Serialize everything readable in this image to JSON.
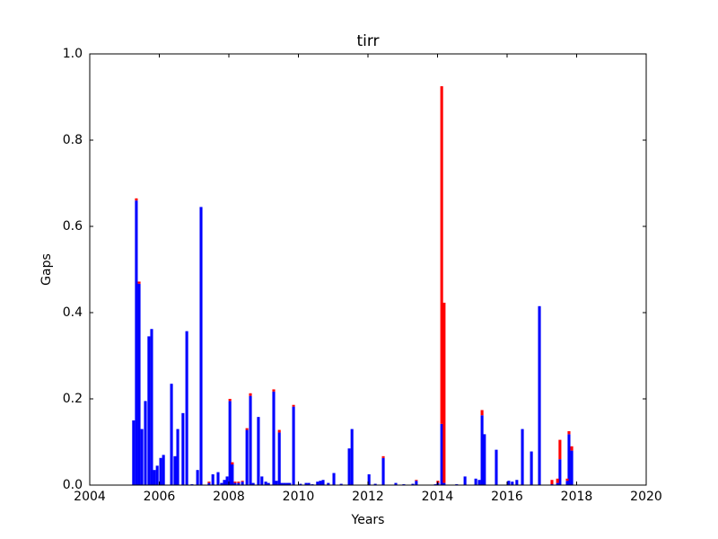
{
  "chart_data": {
    "type": "bar",
    "stacked": true,
    "title": "tirr",
    "x_label": "Years",
    "y_label": "Gaps",
    "x": [
      2005.26,
      2005.34,
      2005.42,
      2005.5,
      2005.6,
      2005.7,
      2005.78,
      2005.86,
      2005.94,
      2006.04,
      2006.12,
      2006.35,
      2006.45,
      2006.53,
      2006.68,
      2006.79,
      2006.94,
      2007.1,
      2007.2,
      2007.43,
      2007.54,
      2007.69,
      2007.79,
      2007.87,
      2007.95,
      2008.03,
      2008.1,
      2008.18,
      2008.28,
      2008.39,
      2008.52,
      2008.62,
      2008.7,
      2008.85,
      2008.95,
      2009.06,
      2009.14,
      2009.29,
      2009.37,
      2009.45,
      2009.52,
      2009.6,
      2009.68,
      2009.75,
      2009.86,
      2010.06,
      2010.22,
      2010.3,
      2010.4,
      2010.55,
      2010.63,
      2010.71,
      2010.86,
      2011.02,
      2011.23,
      2011.46,
      2011.54,
      2012.03,
      2012.21,
      2012.44,
      2012.8,
      2013.03,
      2013.29,
      2013.39,
      2013.94,
      2014.01,
      2014.12,
      2014.19,
      2014.55,
      2014.79,
      2015.1,
      2015.2,
      2015.28,
      2015.35,
      2015.69,
      2016.05,
      2016.15,
      2016.28,
      2016.44,
      2016.7,
      2016.93,
      2017.29,
      2017.45,
      2017.52,
      2017.73,
      2017.78,
      2017.86
    ],
    "series": [
      {
        "color": "#0000ff",
        "values": [
          0.15,
          0.66,
          0.467,
          0.13,
          0.195,
          0.345,
          0.362,
          0.035,
          0.045,
          0.063,
          0.07,
          0.235,
          0.067,
          0.13,
          0.167,
          0.357,
          0.002,
          0.035,
          0.645,
          0.005,
          0.025,
          0.03,
          0.005,
          0.012,
          0.02,
          0.195,
          0.048,
          0.005,
          0.005,
          0.008,
          0.128,
          0.207,
          0.005,
          0.158,
          0.02,
          0.008,
          0.005,
          0.217,
          0.01,
          0.122,
          0.005,
          0.005,
          0.005,
          0.005,
          0.182,
          0.003,
          0.005,
          0.005,
          0.002,
          0.008,
          0.01,
          0.012,
          0.005,
          0.028,
          0.003,
          0.085,
          0.13,
          0.025,
          0.003,
          0.063,
          0.005,
          0.002,
          0.003,
          0.01,
          0.002,
          0.005,
          0.142,
          0.005,
          0.002,
          0.02,
          0.015,
          0.012,
          0.162,
          0.118,
          0.082,
          0.01,
          0.008,
          0.012,
          0.13,
          0.078,
          0.415,
          0.002,
          0.005,
          0.06,
          0.01,
          0.118,
          0.08
        ]
      },
      {
        "color": "#ff0000",
        "values": [
          0,
          0.005,
          0.005,
          0,
          0,
          0,
          0,
          0,
          0,
          0,
          0,
          0,
          0,
          0,
          0,
          0,
          0,
          0,
          0,
          0.003,
          0,
          0,
          0,
          0,
          0,
          0.005,
          0.005,
          0.003,
          0.003,
          0.002,
          0.004,
          0.006,
          0,
          0,
          0,
          0,
          0,
          0.005,
          0,
          0.006,
          0,
          0,
          0,
          0,
          0.004,
          0,
          0,
          0,
          0,
          0,
          0,
          0,
          0,
          0,
          0,
          0,
          0,
          0,
          0,
          0.004,
          0,
          0,
          0,
          0.002,
          0,
          0.005,
          0.783,
          0.418,
          0,
          0,
          0,
          0,
          0.012,
          0,
          0,
          0,
          0,
          0,
          0,
          0,
          0,
          0.01,
          0.01,
          0.045,
          0.005,
          0.007,
          0.01
        ]
      }
    ],
    "xlim": [
      2004,
      2020
    ],
    "xticks": [
      2004,
      2006,
      2008,
      2010,
      2012,
      2014,
      2016,
      2018,
      2020
    ],
    "ylim": [
      0,
      1
    ],
    "yticks": [
      {
        "value": 0,
        "label": "0.0"
      },
      0.2,
      0.4,
      0.6,
      0.8,
      {
        "value": 1,
        "label": "1.0"
      }
    ]
  }
}
